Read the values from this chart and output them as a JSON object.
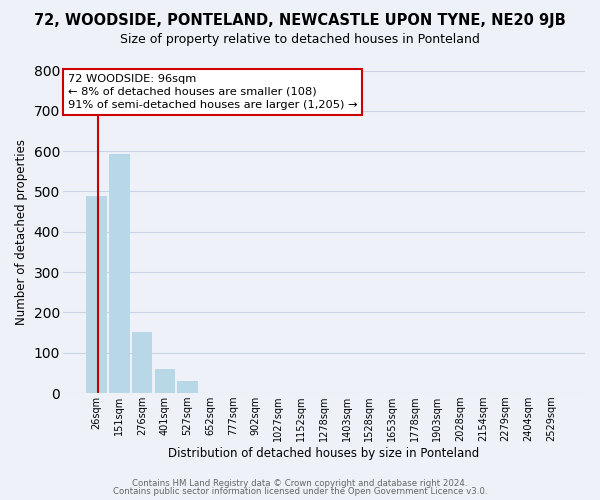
{
  "title": "72, WOODSIDE, PONTELAND, NEWCASTLE UPON TYNE, NE20 9JB",
  "subtitle": "Size of property relative to detached houses in Ponteland",
  "xlabel": "Distribution of detached houses by size in Ponteland",
  "ylabel": "Number of detached properties",
  "bar_labels": [
    "26sqm",
    "151sqm",
    "276sqm",
    "401sqm",
    "527sqm",
    "652sqm",
    "777sqm",
    "902sqm",
    "1027sqm",
    "1152sqm",
    "1278sqm",
    "1403sqm",
    "1528sqm",
    "1653sqm",
    "1778sqm",
    "1903sqm",
    "2028sqm",
    "2154sqm",
    "2279sqm",
    "2404sqm",
    "2529sqm"
  ],
  "bar_values": [
    489,
    592,
    152,
    60,
    30,
    0,
    0,
    0,
    0,
    0,
    0,
    0,
    0,
    0,
    0,
    0,
    0,
    0,
    0,
    0,
    0
  ],
  "bar_color": "#b8d8e8",
  "ylim": [
    0,
    800
  ],
  "yticks": [
    0,
    100,
    200,
    300,
    400,
    500,
    600,
    700,
    800
  ],
  "annotation_title": "72 WOODSIDE: 96sqm",
  "annotation_line1": "← 8% of detached houses are smaller (108)",
  "annotation_line2": "91% of semi-detached houses are larger (1,205) →",
  "annotation_box_color": "#ffffff",
  "annotation_box_edge": "#cc0000",
  "footer1": "Contains HM Land Registry data © Crown copyright and database right 2024.",
  "footer2": "Contains public sector information licensed under the Open Government Licence v3.0.",
  "grid_color": "#c8d4e4",
  "bg_color": "#eef2f8",
  "red_line_color": "#cc0000"
}
